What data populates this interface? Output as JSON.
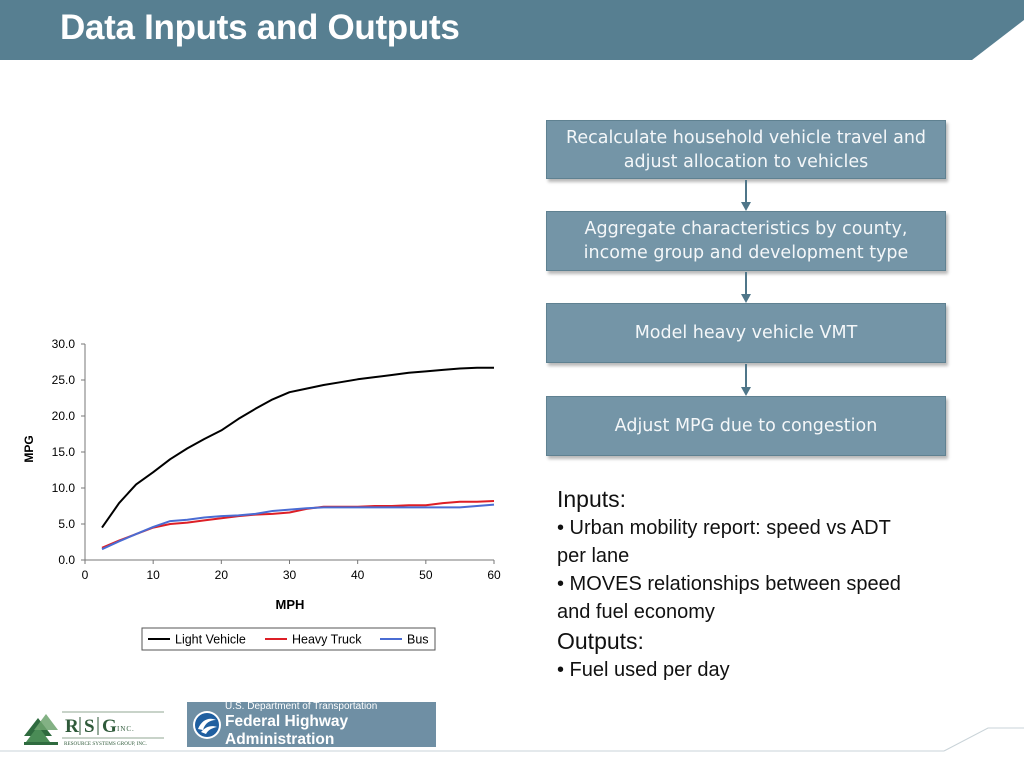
{
  "slide": {
    "title": "Data Inputs and Outputs"
  },
  "theme": {
    "banner_color": "#577f91",
    "box_color": "#7495a7",
    "arrow_color": "#4f7689"
  },
  "flow": {
    "steps": [
      {
        "label": "Recalculate household vehicle travel and adjust allocation to vehicles"
      },
      {
        "label": "Aggregate characteristics by county, income group and development type"
      },
      {
        "label": "Model heavy vehicle VMT"
      },
      {
        "label": "Adjust MPG due to congestion"
      }
    ]
  },
  "io": {
    "inputs_heading": "Inputs:",
    "inputs": [
      "• Urban mobility report: speed vs ADT per lane",
      "• MOVES relationships between speed and fuel economy"
    ],
    "outputs_heading": "Outputs:",
    "outputs": [
      "• Fuel used per day"
    ]
  },
  "logos": {
    "rsg": {
      "letters": [
        "R",
        "S",
        "G"
      ],
      "suffix": "INC.",
      "tagline": "RESOURCE SYSTEMS GROUP, INC."
    },
    "fhwa": {
      "dept": "U.S. Department of Transportation",
      "name": "Federal Highway Administration"
    }
  },
  "chart_data": {
    "type": "line",
    "title": "",
    "xlabel": "MPH",
    "ylabel": "MPG",
    "xlim": [
      0,
      60
    ],
    "ylim": [
      0,
      30
    ],
    "xticks": [
      "0",
      "10",
      "20",
      "30",
      "40",
      "50",
      "60"
    ],
    "yticks": [
      "0.0",
      "5.0",
      "10.0",
      "15.0",
      "20.0",
      "25.0",
      "30.0"
    ],
    "legend_position": "bottom",
    "series": [
      {
        "name": "Light Vehicle",
        "color": "#000000",
        "x": [
          2.5,
          5,
          7.5,
          10,
          12.5,
          15,
          17.5,
          20,
          22.5,
          25,
          27.5,
          30,
          32.5,
          35,
          37.5,
          40,
          42.5,
          45,
          47.5,
          50,
          52.5,
          55,
          57.5,
          60
        ],
        "y": [
          4.5,
          7.9,
          10.5,
          12.2,
          14.0,
          15.5,
          16.8,
          18.0,
          19.6,
          21.0,
          22.3,
          23.3,
          23.8,
          24.3,
          24.7,
          25.1,
          25.4,
          25.7,
          26.0,
          26.2,
          26.4,
          26.6,
          26.7,
          26.7
        ]
      },
      {
        "name": "Heavy Truck",
        "color": "#dd1f26",
        "x": [
          2.5,
          5,
          7.5,
          10,
          12.5,
          15,
          17.5,
          20,
          22.5,
          25,
          27.5,
          30,
          32.5,
          35,
          37.5,
          40,
          42.5,
          45,
          47.5,
          50,
          52.5,
          55,
          57.5,
          60
        ],
        "y": [
          1.7,
          2.7,
          3.6,
          4.5,
          5.0,
          5.2,
          5.5,
          5.8,
          6.1,
          6.3,
          6.4,
          6.6,
          7.1,
          7.4,
          7.4,
          7.4,
          7.5,
          7.5,
          7.6,
          7.6,
          7.9,
          8.1,
          8.1,
          8.2
        ]
      },
      {
        "name": "Bus",
        "color": "#4a6cd3",
        "x": [
          2.5,
          5,
          7.5,
          10,
          12.5,
          15,
          17.5,
          20,
          22.5,
          25,
          27.5,
          30,
          32.5,
          35,
          37.5,
          40,
          42.5,
          45,
          47.5,
          50,
          52.5,
          55,
          57.5,
          60
        ],
        "y": [
          1.5,
          2.6,
          3.6,
          4.6,
          5.4,
          5.6,
          5.9,
          6.1,
          6.2,
          6.4,
          6.8,
          7.0,
          7.2,
          7.3,
          7.3,
          7.3,
          7.3,
          7.3,
          7.3,
          7.3,
          7.3,
          7.3,
          7.5,
          7.7
        ]
      }
    ]
  }
}
